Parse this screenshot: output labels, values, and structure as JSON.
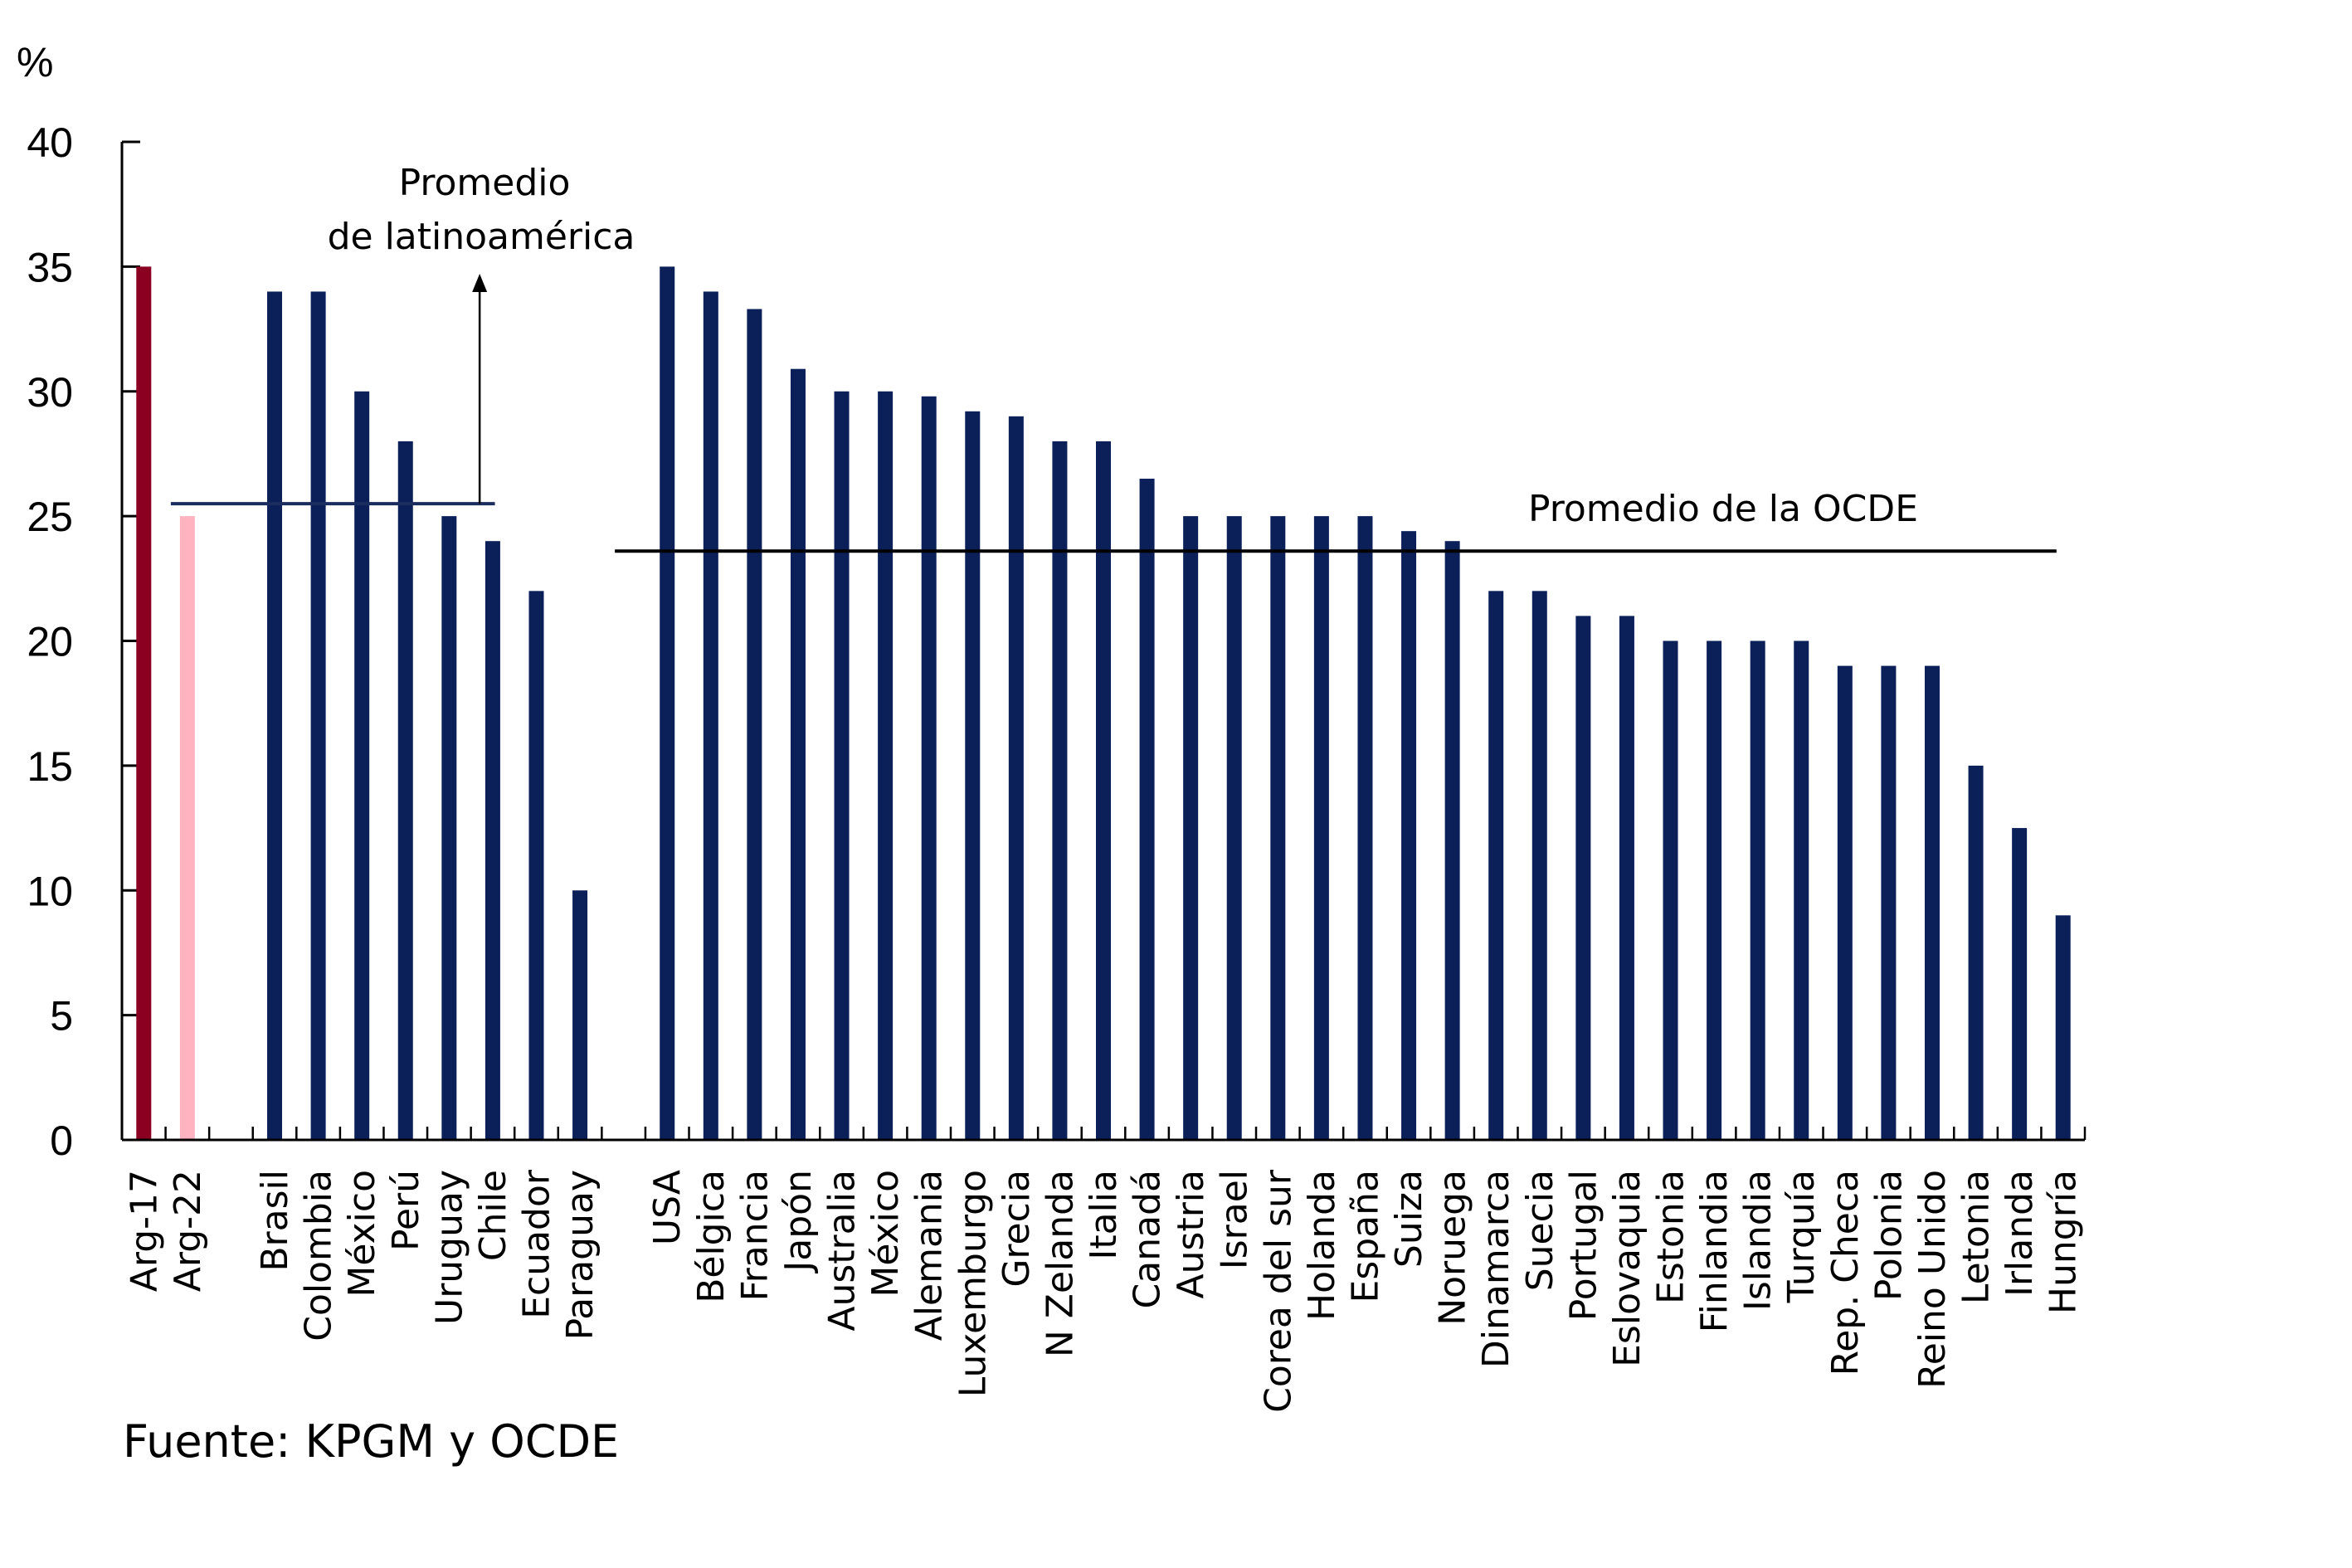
{
  "chart_data": {
    "type": "bar",
    "title": "",
    "xlabel": "",
    "ylabel": "%",
    "ylim": [
      0,
      40
    ],
    "yticks": [
      0,
      5,
      10,
      15,
      20,
      25,
      30,
      35,
      40
    ],
    "grid": false,
    "legend": "none",
    "categories": [
      "Arg-17",
      "Arg-22",
      "",
      "Brasil",
      "Colombia",
      "México",
      "Perú",
      "Uruguay",
      "Chile",
      "Ecuador",
      "Paraguay",
      "",
      "USA",
      "Bélgica",
      "Francia",
      "Japón",
      "Australia",
      "México",
      "Alemania",
      "Luxemburgo",
      "Grecia",
      "N Zelanda",
      "Italia",
      "Canadá",
      "Austria",
      "Israel",
      "Corea del sur",
      "Holanda",
      "España",
      "Suiza",
      "Noruega",
      "Dinamarca",
      "Suecia",
      "Portugal",
      "Eslovaquia",
      "Estonia",
      "Finlandia",
      "Islandia",
      "Turquía",
      "Rep. Checa",
      "Polonia",
      "Reino Unido",
      "Letonia",
      "Irlanda",
      "Hungría"
    ],
    "values": [
      35,
      25,
      null,
      34,
      34,
      30,
      28,
      25,
      24,
      22,
      10,
      null,
      35,
      34,
      33.3,
      30.9,
      30,
      30,
      29.8,
      29.2,
      29,
      28,
      28,
      26.5,
      25,
      25,
      25,
      25,
      25,
      24.4,
      24,
      22,
      22,
      21,
      21,
      20,
      20,
      20,
      20,
      19,
      19,
      19,
      15,
      12.5,
      9
    ],
    "bar_colors": {
      "Arg-17": "#8b0020",
      "Arg-22": "#ffb3c1",
      "default": "#0b2059"
    },
    "reference_lines": [
      {
        "name": "Promedio de latinoamérica",
        "value": 25.5,
        "color": "#1a2d5e",
        "label_lines": [
          "Promedio",
          "de latinoamérica"
        ]
      },
      {
        "name": "Promedio de la OCDE",
        "value": 23.6,
        "color": "#000000",
        "label_lines": [
          "Promedio de la OCDE"
        ]
      }
    ],
    "source": "Fuente:  KPGM y OCDE"
  }
}
